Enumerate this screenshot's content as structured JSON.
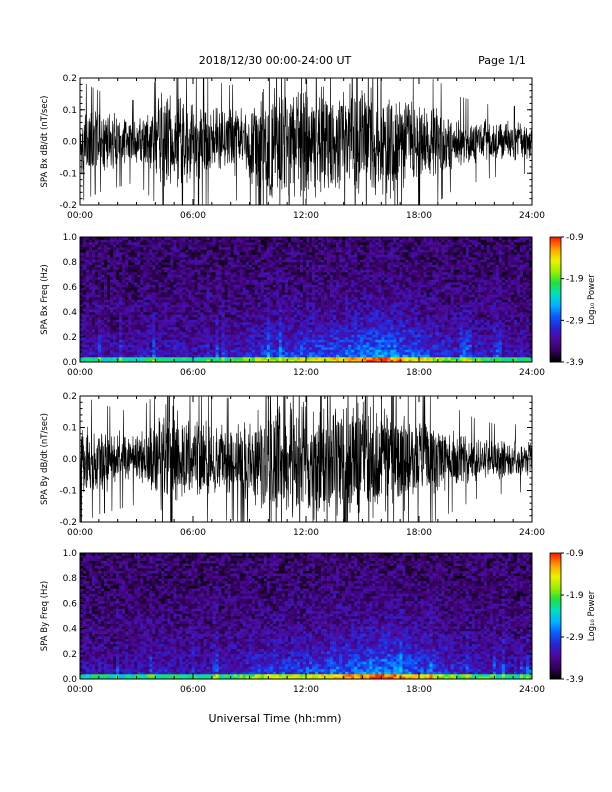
{
  "header": {
    "title": "2018/12/30   00:00-24:00 UT",
    "page": "Page 1/1"
  },
  "footer": {
    "xlabel": "Universal Time (hh:mm)"
  },
  "colorbar": {
    "label": "Log₁₀ Power",
    "ticks": [
      "-0.9",
      "-1.9",
      "-2.9",
      "-3.9"
    ],
    "range": [
      -3.9,
      -0.9
    ],
    "colormap": [
      "#000000",
      "#3a0066",
      "#4b0a9e",
      "#2a23d6",
      "#0a5cff",
      "#00b4ff",
      "#00e0c0",
      "#20e040",
      "#9cf000",
      "#f0f000",
      "#ffa000",
      "#ff2000"
    ]
  },
  "chart_data": [
    {
      "type": "line",
      "ylabel": "SPA Bx dB/dt (nT/sec)",
      "xticks": [
        "00:00",
        "06:00",
        "12:00",
        "18:00",
        "24:00"
      ],
      "ylim": [
        -0.2,
        0.2
      ],
      "yticks": [
        "0.2",
        "0.1",
        "0.0",
        "-0.1",
        "-0.2"
      ],
      "x_hours": [
        0,
        1,
        2,
        3,
        4,
        4.3,
        5,
        6,
        7,
        8,
        9,
        10,
        11,
        12,
        13,
        14,
        15,
        16,
        17,
        18,
        19,
        20,
        21,
        22,
        23,
        24
      ],
      "amplitude": [
        0.12,
        0.1,
        0.09,
        0.08,
        0.12,
        0.2,
        0.16,
        0.14,
        0.12,
        0.11,
        0.13,
        0.2,
        0.2,
        0.2,
        0.2,
        0.2,
        0.2,
        0.2,
        0.17,
        0.13,
        0.12,
        0.09,
        0.08,
        0.07,
        0.07,
        0.06
      ]
    },
    {
      "type": "heatmap",
      "ylabel": "SPA Bx Freq (Hz)",
      "xticks": [
        "00:00",
        "06:00",
        "12:00",
        "18:00",
        "24:00"
      ],
      "ylim": [
        0.0,
        1.0
      ],
      "yticks": [
        "1.0",
        "0.8",
        "0.6",
        "0.4",
        "0.2",
        "0.0"
      ],
      "z_units": "Log10 Power",
      "z_range": [
        -3.9,
        -0.9
      ],
      "activity_hours": [
        0,
        2,
        4,
        6,
        8,
        10,
        12,
        14,
        16,
        18,
        20,
        22,
        24
      ],
      "activity": [
        0.25,
        0.2,
        0.3,
        0.25,
        0.3,
        0.45,
        0.5,
        0.6,
        0.75,
        0.55,
        0.35,
        0.3,
        0.25
      ]
    },
    {
      "type": "line",
      "ylabel": "SPA By dB/dt (nT/sec)",
      "xticks": [
        "00:00",
        "06:00",
        "12:00",
        "18:00",
        "24:00"
      ],
      "ylim": [
        -0.2,
        0.2
      ],
      "yticks": [
        "0.2",
        "0.1",
        "0.0",
        "-0.1",
        "-0.2"
      ],
      "x_hours": [
        0,
        1,
        2,
        3,
        4,
        4.3,
        5,
        6,
        7,
        8,
        9,
        10,
        11,
        12,
        13,
        14,
        15,
        16,
        17,
        18,
        19,
        20,
        21,
        22,
        23,
        24
      ],
      "amplitude": [
        0.13,
        0.11,
        0.1,
        0.09,
        0.13,
        0.2,
        0.17,
        0.15,
        0.13,
        0.12,
        0.14,
        0.2,
        0.2,
        0.2,
        0.2,
        0.2,
        0.2,
        0.2,
        0.18,
        0.14,
        0.12,
        0.1,
        0.08,
        0.07,
        0.07,
        0.06
      ]
    },
    {
      "type": "heatmap",
      "ylabel": "SPA By Freq (Hz)",
      "xticks": [
        "00:00",
        "06:00",
        "12:00",
        "18:00",
        "24:00"
      ],
      "ylim": [
        0.0,
        1.0
      ],
      "yticks": [
        "1.0",
        "0.8",
        "0.6",
        "0.4",
        "0.2",
        "0.0"
      ],
      "z_units": "Log10 Power",
      "z_range": [
        -3.9,
        -0.9
      ],
      "activity_hours": [
        0,
        2,
        4,
        6,
        8,
        10,
        12,
        14,
        16,
        18,
        20,
        22,
        24
      ],
      "activity": [
        0.25,
        0.2,
        0.3,
        0.25,
        0.3,
        0.45,
        0.5,
        0.6,
        0.75,
        0.55,
        0.35,
        0.3,
        0.25
      ]
    }
  ]
}
